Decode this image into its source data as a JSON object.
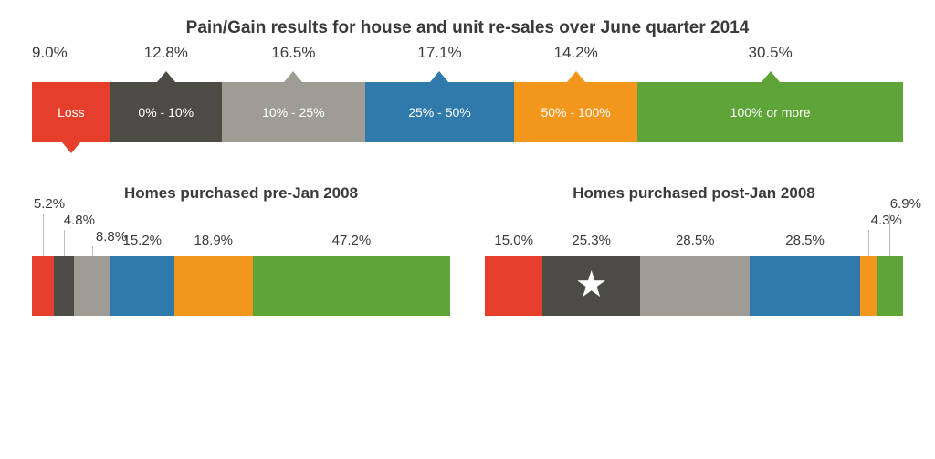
{
  "title": "Pain/Gain results for house and unit re-sales over June quarter 2014",
  "main": {
    "segments": [
      {
        "label": "Loss",
        "pct": "9.0%",
        "value": 9.0,
        "color": "#e53e2b",
        "pointer": "down"
      },
      {
        "label": "0% - 10%",
        "pct": "12.8%",
        "value": 12.8,
        "color": "#4d4b46",
        "pointer": "up"
      },
      {
        "label": "10% - 25%",
        "pct": "16.5%",
        "value": 16.5,
        "color": "#9f9c95",
        "pointer": "up"
      },
      {
        "label": "25% - 50%",
        "pct": "17.1%",
        "value": 17.1,
        "color": "#2f79ab",
        "pointer": "up"
      },
      {
        "label": "50% - 100%",
        "pct": "14.2%",
        "value": 14.2,
        "color": "#f3971c",
        "pointer": "up"
      },
      {
        "label": "100% or more",
        "pct": "30.5%",
        "value": 30.5,
        "color": "#5ea438",
        "pointer": "up"
      }
    ]
  },
  "pre": {
    "title": "Homes purchased pre-Jan 2008",
    "segments": [
      {
        "pct": "5.2%",
        "value": 5.2,
        "color": "#e53e2b",
        "labelStyle": "lead",
        "labelOffsetY": 48,
        "labelDX": -10
      },
      {
        "pct": "4.8%",
        "value": 4.8,
        "color": "#4d4b46",
        "labelStyle": "lead",
        "labelOffsetY": 30,
        "labelDX": 0
      },
      {
        "pct": "8.8%",
        "value": 8.8,
        "color": "#9f9c95",
        "labelStyle": "lead",
        "labelOffsetY": 12,
        "labelDX": 4
      },
      {
        "pct": "15.2%",
        "value": 15.2,
        "color": "#2f79ab",
        "labelStyle": "center"
      },
      {
        "pct": "18.9%",
        "value": 18.9,
        "color": "#f3971c",
        "labelStyle": "center"
      },
      {
        "pct": "47.2%",
        "value": 47.2,
        "color": "#5ea438",
        "labelStyle": "center"
      }
    ]
  },
  "post": {
    "title": "Homes purchased post-Jan 2008",
    "star_segment_index": 1,
    "segments": [
      {
        "pct": "15.0%",
        "value": 15.0,
        "color": "#e53e2b",
        "labelStyle": "center"
      },
      {
        "pct": "25.3%",
        "value": 25.3,
        "color": "#4d4b46",
        "labelStyle": "center"
      },
      {
        "pct": "28.5%",
        "value": 28.5,
        "color": "#9f9c95",
        "labelStyle": "center"
      },
      {
        "pct": "28.5%",
        "value": 28.5,
        "color": "#2f79ab",
        "labelStyle": "center"
      },
      {
        "pct": "4.3%",
        "value": 4.3,
        "color": "#f3971c",
        "labelStyle": "lead-right",
        "labelOffsetY": 30,
        "labelDX": -28
      },
      {
        "pct": "6.9%",
        "value": 6.9,
        "color": "#5ea438",
        "labelStyle": "lead-right",
        "labelOffsetY": 48,
        "labelDX": -20
      }
    ]
  }
}
